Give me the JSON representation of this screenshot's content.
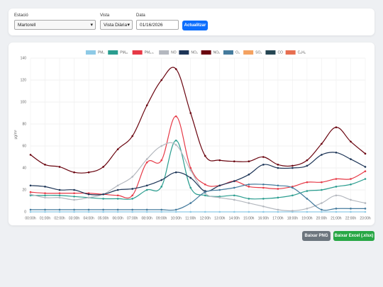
{
  "controls": {
    "station_label": "Estació",
    "station_value": "Martorell",
    "view_label": "Vista",
    "view_value": "Vista Diària",
    "date_label": "Data",
    "date_value": "01/16/2026",
    "update_button": "Actualitzar"
  },
  "chart_data": {
    "type": "line",
    "ylabel": "µg/m³",
    "categories": [
      "00:00h",
      "01:00h",
      "02:00h",
      "03:00h",
      "04:00h",
      "05:00h",
      "06:00h",
      "07:00h",
      "08:00h",
      "09:00h",
      "10:00h",
      "11:00h",
      "12:00h",
      "13:00h",
      "14:00h",
      "15:00h",
      "16:00h",
      "17:00h",
      "18:00h",
      "19:00h",
      "20:00h",
      "21:00h",
      "22:00h",
      "23:00h"
    ],
    "ylim": [
      0,
      140
    ],
    "yticks": [
      0,
      20,
      40,
      60,
      80,
      100,
      120,
      140
    ],
    "grid": true,
    "legend": "top",
    "series": [
      {
        "name": "PM₁",
        "color": "#8ecae6",
        "values": [
          0,
          0,
          0,
          0,
          0,
          0,
          0,
          0,
          0,
          0,
          0,
          0,
          0,
          0,
          0,
          0,
          0,
          0,
          0,
          0,
          0,
          0,
          0,
          0
        ]
      },
      {
        "name": "PM₁₀",
        "color": "#2a9d8f",
        "values": [
          15,
          15,
          15,
          14,
          13,
          12,
          12,
          12,
          20,
          23,
          65,
          22,
          15,
          14,
          15,
          12,
          12,
          13,
          15,
          19,
          20,
          23,
          25,
          30
        ]
      },
      {
        "name": "PM₂.₅",
        "color": "#e63946",
        "values": [
          18,
          17,
          17,
          17,
          17,
          16,
          15,
          15,
          45,
          47,
          87,
          40,
          25,
          24,
          28,
          23,
          22,
          21,
          23,
          27,
          27,
          30,
          30,
          37
        ]
      },
      {
        "name": "NO",
        "color": "#b4b8bf",
        "values": [
          16,
          13,
          13,
          11,
          13,
          16,
          24,
          32,
          48,
          60,
          61,
          38,
          17,
          13,
          11,
          8,
          5,
          2,
          1,
          3,
          8,
          15,
          11,
          8
        ]
      },
      {
        "name": "NO₂",
        "color": "#1d3557",
        "values": [
          24,
          23,
          20,
          20,
          16,
          16,
          20,
          21,
          24,
          29,
          36,
          31,
          19,
          24,
          28,
          34,
          43,
          40,
          40,
          42,
          52,
          54,
          48,
          41
        ]
      },
      {
        "name": "NOₓ",
        "color": "#6a040f",
        "values": [
          52,
          43,
          41,
          36,
          36,
          41,
          57,
          69,
          97,
          120,
          130,
          90,
          51,
          47,
          46,
          46,
          50,
          43,
          42,
          47,
          62,
          77,
          64,
          53
        ]
      },
      {
        "name": "O₃",
        "color": "#457b9d",
        "values": [
          2,
          2,
          2,
          2,
          2,
          2,
          2,
          2,
          2,
          2,
          2,
          8,
          18,
          20,
          22,
          25,
          25,
          24,
          22,
          12,
          2,
          3,
          3,
          3
        ]
      },
      {
        "name": "SO₂",
        "color": "#f4a261",
        "values": [
          null,
          null,
          null,
          null,
          null,
          null,
          null,
          null,
          null,
          null,
          null,
          null,
          null,
          null,
          null,
          null,
          null,
          null,
          null,
          null,
          null,
          null,
          null,
          null
        ]
      },
      {
        "name": "CO",
        "color": "#264653",
        "values": [
          null,
          null,
          null,
          null,
          null,
          null,
          null,
          null,
          null,
          null,
          null,
          null,
          null,
          null,
          null,
          null,
          null,
          null,
          null,
          null,
          null,
          null,
          null,
          null
        ]
      },
      {
        "name": "C₆H₆",
        "color": "#e76f51",
        "values": [
          null,
          null,
          null,
          null,
          null,
          null,
          null,
          null,
          null,
          null,
          null,
          null,
          null,
          null,
          null,
          null,
          null,
          null,
          null,
          null,
          null,
          null,
          null,
          null
        ]
      }
    ]
  },
  "actions": {
    "png_button": "Baixar PNG",
    "excel_button": "Baixar Excel (.xlsx)"
  }
}
